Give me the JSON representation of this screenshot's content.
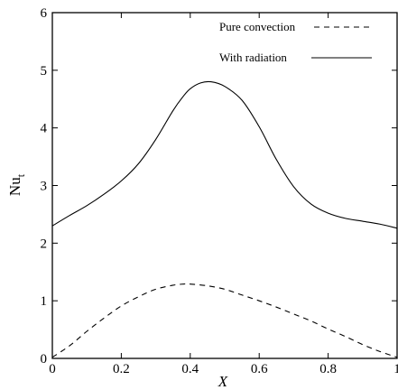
{
  "chart_data": {
    "type": "line",
    "xlabel": "X",
    "ylabel": {
      "main": "Nu",
      "sub": "t"
    },
    "xlim": [
      0,
      1
    ],
    "ylim": [
      0,
      6
    ],
    "xticks": [
      0,
      0.2,
      0.4,
      0.6,
      0.8,
      1
    ],
    "xtick_labels": [
      "0",
      "0.2",
      "0.4",
      "0.6",
      "0.8",
      "1"
    ],
    "yticks": [
      0,
      1,
      2,
      3,
      4,
      5,
      6
    ],
    "ytick_labels": [
      "0",
      "1",
      "2",
      "3",
      "4",
      "5",
      "6"
    ],
    "grid": false,
    "legend_position": "top-right",
    "series": [
      {
        "name": "Pure convection",
        "style": "dashed",
        "color": "#000000",
        "x": [
          0,
          0.05,
          0.1,
          0.15,
          0.2,
          0.25,
          0.3,
          0.35,
          0.38,
          0.4,
          0.45,
          0.5,
          0.55,
          0.6,
          0.65,
          0.7,
          0.75,
          0.8,
          0.85,
          0.9,
          0.95,
          1.0
        ],
        "y": [
          0.02,
          0.22,
          0.47,
          0.7,
          0.91,
          1.07,
          1.2,
          1.27,
          1.29,
          1.29,
          1.26,
          1.2,
          1.1,
          1.0,
          0.89,
          0.77,
          0.65,
          0.51,
          0.38,
          0.24,
          0.12,
          0.02
        ]
      },
      {
        "name": "With radiation",
        "style": "solid",
        "color": "#000000",
        "x": [
          0,
          0.05,
          0.1,
          0.15,
          0.2,
          0.25,
          0.3,
          0.35,
          0.38,
          0.4,
          0.43,
          0.46,
          0.5,
          0.55,
          0.6,
          0.65,
          0.7,
          0.75,
          0.8,
          0.85,
          0.9,
          0.95,
          1.0
        ],
        "y": [
          2.3,
          2.48,
          2.65,
          2.85,
          3.08,
          3.38,
          3.8,
          4.3,
          4.55,
          4.68,
          4.78,
          4.8,
          4.72,
          4.48,
          4.02,
          3.45,
          2.98,
          2.68,
          2.52,
          2.43,
          2.38,
          2.33,
          2.26
        ]
      }
    ]
  }
}
